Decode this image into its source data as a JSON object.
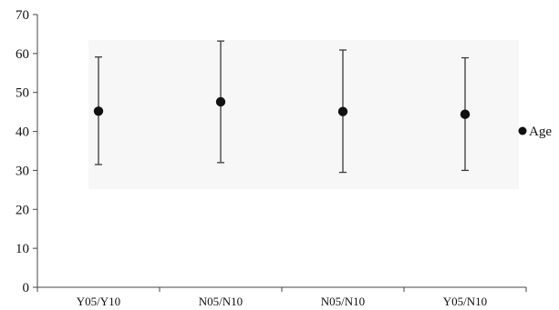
{
  "chart_data": {
    "type": "scatter",
    "title": "",
    "xlabel": "",
    "ylabel": "",
    "categories": [
      "Y05/Y10",
      "N05/N10",
      "N05/N10",
      "Y05/N10"
    ],
    "ylim": [
      0,
      70
    ],
    "yticks": [
      0,
      10,
      20,
      30,
      40,
      50,
      60,
      70
    ],
    "grid": false,
    "legend_position": "right",
    "series": [
      {
        "name": "Age",
        "color": "#111111",
        "values": [
          45.2,
          47.6,
          45.1,
          44.4
        ],
        "upper": [
          59.1,
          63.2,
          60.9,
          58.9
        ],
        "lower": [
          31.5,
          32.0,
          29.5,
          30.0
        ]
      }
    ]
  }
}
